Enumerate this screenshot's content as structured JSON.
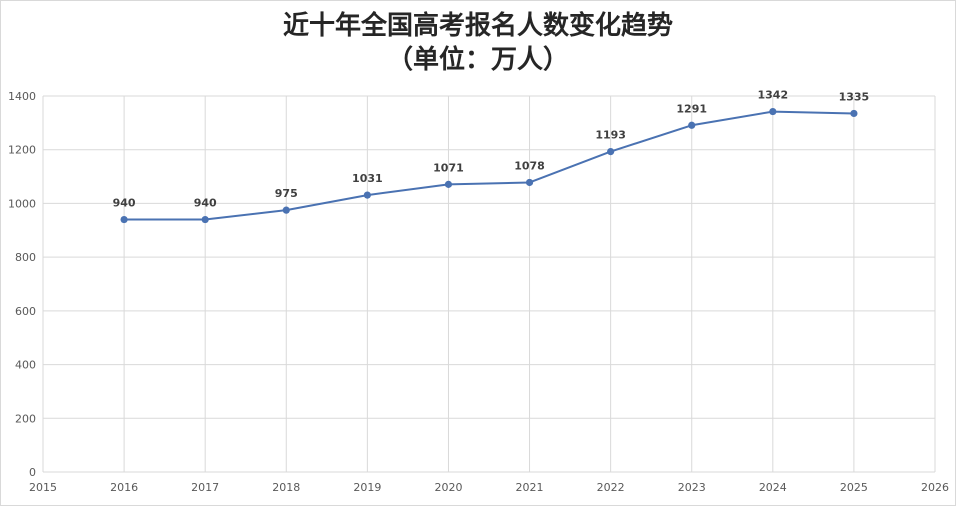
{
  "chart_data": {
    "type": "line",
    "title": "近十年全国高考报名人数变化趋势",
    "subtitle": "（单位：万人）",
    "xlabel": "",
    "ylabel": "",
    "x": [
      2016,
      2017,
      2018,
      2019,
      2020,
      2021,
      2022,
      2023,
      2024,
      2025
    ],
    "series": [
      {
        "values": [
          940,
          940,
          975,
          1031,
          1071,
          1078,
          1193,
          1291,
          1342,
          1335
        ],
        "color": "#4a72b2"
      }
    ],
    "xlim": [
      2015,
      2026
    ],
    "ylim": [
      0,
      1400
    ],
    "xticks": [
      2015,
      2016,
      2017,
      2018,
      2019,
      2020,
      2021,
      2022,
      2023,
      2024,
      2025,
      2026
    ],
    "yticks": [
      0,
      200,
      400,
      600,
      800,
      1000,
      1200,
      1400
    ],
    "grid": true,
    "legend": "none",
    "colors": {
      "line": "#4a72b2",
      "grid": "#d9d9d9",
      "axis_text": "#595959",
      "label_text": "#404040"
    }
  }
}
